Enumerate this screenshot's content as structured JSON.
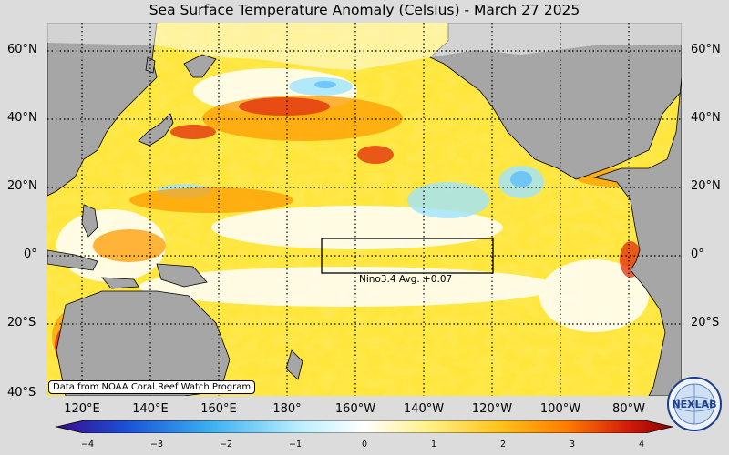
{
  "title": "Sea Surface Temperature Anomaly (Celsius) - March 27 2025",
  "credit": "Data from NOAA Coral Reef Watch Program",
  "nino_label": "Nino3.4 Avg. +0.07",
  "lat_labels": [
    "60°N",
    "40°N",
    "20°N",
    "0°",
    "20°S",
    "40°S"
  ],
  "lon_labels": [
    "120°E",
    "140°E",
    "160°E",
    "180°",
    "160°W",
    "140°W",
    "120°W",
    "100°W",
    "80°W"
  ],
  "colorbar": {
    "ticks": [
      "−4",
      "−3",
      "−2",
      "−1",
      "0",
      "1",
      "2",
      "3",
      "4"
    ],
    "colors": [
      "#3a0a8c",
      "#1a4fd6",
      "#3bb0f0",
      "#bff0ff",
      "#ffffff",
      "#fff28a",
      "#ffc21a",
      "#ff7a00",
      "#d11a0a",
      "#8c0000"
    ]
  },
  "logo": {
    "text": "NEXLAB"
  },
  "colors": {
    "land": "#a6a6a6",
    "background": "#dcdcdc"
  }
}
